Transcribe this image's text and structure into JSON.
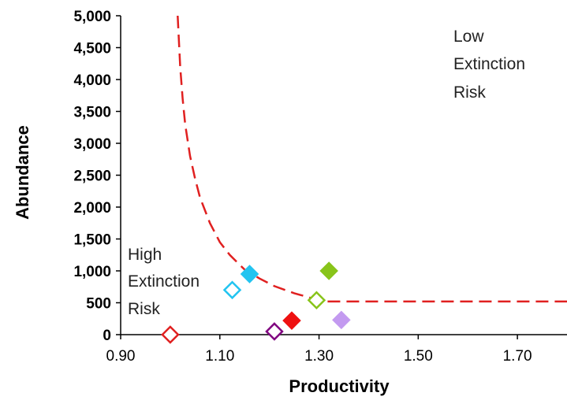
{
  "chart_data": {
    "type": "scatter",
    "title": "",
    "xlabel": "Productivity",
    "ylabel": "Abundance",
    "xlim": [
      0.9,
      1.8
    ],
    "ylim": [
      0,
      5000
    ],
    "x_ticks": [
      0.9,
      1.1,
      1.3,
      1.5,
      1.7
    ],
    "x_tick_labels": [
      "0.90",
      "1.10",
      "1.30",
      "1.50",
      "1.70"
    ],
    "y_ticks": [
      0,
      500,
      1000,
      1500,
      2000,
      2500,
      3000,
      3500,
      4000,
      4500,
      5000
    ],
    "y_tick_labels": [
      "0",
      "500",
      "1,000",
      "1,500",
      "2,000",
      "2,500",
      "3,000",
      "3,500",
      "4,000",
      "4,500",
      "5,000"
    ],
    "grid": false,
    "annotations": [
      {
        "lines": [
          "Low",
          "Extinction",
          "Risk"
        ]
      },
      {
        "lines": [
          "High",
          "Extinction",
          "Risk"
        ]
      }
    ],
    "threshold_curve": {
      "color": "#e02020",
      "style": "dashed",
      "x": [
        1.015,
        1.02,
        1.025,
        1.03,
        1.04,
        1.05,
        1.06,
        1.08,
        1.1,
        1.12,
        1.15,
        1.18,
        1.21,
        1.25,
        1.3,
        1.31,
        1.4,
        1.5,
        1.6,
        1.7,
        1.8
      ],
      "y": [
        5000,
        4200,
        3700,
        3300,
        2800,
        2450,
        2150,
        1750,
        1450,
        1250,
        1020,
        880,
        760,
        650,
        540,
        520,
        520,
        520,
        520,
        520,
        520
      ]
    },
    "points": [
      {
        "x": 1.0,
        "y": 0,
        "color": "#e02020",
        "filled": false
      },
      {
        "x": 1.125,
        "y": 700,
        "color": "#22c4f0",
        "filled": false
      },
      {
        "x": 1.16,
        "y": 950,
        "color": "#22c4f0",
        "filled": true
      },
      {
        "x": 1.21,
        "y": 50,
        "color": "#800080",
        "filled": false
      },
      {
        "x": 1.245,
        "y": 220,
        "color": "#ee1111",
        "filled": true
      },
      {
        "x": 1.295,
        "y": 540,
        "color": "#88c41a",
        "filled": false
      },
      {
        "x": 1.32,
        "y": 1000,
        "color": "#88c41a",
        "filled": true
      },
      {
        "x": 1.345,
        "y": 230,
        "color": "#c39af0",
        "filled": true
      }
    ]
  }
}
